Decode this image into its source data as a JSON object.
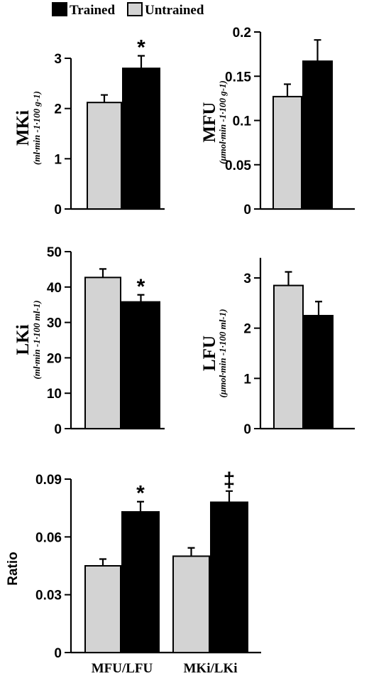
{
  "colors": {
    "trained": "#000000",
    "untrained": "#d3d3d3"
  },
  "legend": [
    {
      "name": "Trained",
      "color": "#000000"
    },
    {
      "name": "Untrained",
      "color": "#d3d3d3"
    }
  ],
  "chart_data": [
    {
      "id": "mki",
      "type": "bar",
      "title": "",
      "ylabel": "MKi",
      "yunit": "(ml·min -1·100 g-1)",
      "ylim": [
        0,
        3
      ],
      "yticks": [
        "0",
        "1",
        "2",
        "3"
      ],
      "categories": [
        ""
      ],
      "series": [
        {
          "name": "Untrained",
          "values": [
            2.12
          ],
          "errors": [
            0.15
          ]
        },
        {
          "name": "Trained",
          "values": [
            2.8
          ],
          "errors": [
            0.25
          ]
        }
      ],
      "annotations": [
        {
          "text": "*",
          "series": "Trained",
          "category": 0
        }
      ]
    },
    {
      "id": "mfu",
      "type": "bar",
      "title": "",
      "ylabel": "MFU",
      "yunit": "(μmol·min -1·100 g-1)",
      "ylim": [
        0,
        0.2
      ],
      "yticks": [
        "0",
        "0.05",
        "0.1",
        "0.15",
        "0.2"
      ],
      "categories": [
        ""
      ],
      "series": [
        {
          "name": "Untrained",
          "values": [
            0.127
          ],
          "errors": [
            0.014
          ]
        },
        {
          "name": "Trained",
          "values": [
            0.167
          ],
          "errors": [
            0.024
          ]
        }
      ],
      "annotations": []
    },
    {
      "id": "lki",
      "type": "bar",
      "title": "",
      "ylabel": "LKi",
      "yunit": "(ml·min -1·100 ml-1)",
      "ylim": [
        0,
        50
      ],
      "yticks": [
        "0",
        "10",
        "20",
        "30",
        "40",
        "50"
      ],
      "categories": [
        ""
      ],
      "series": [
        {
          "name": "Untrained",
          "values": [
            42.7
          ],
          "errors": [
            2.4
          ]
        },
        {
          "name": "Trained",
          "values": [
            35.8
          ],
          "errors": [
            2.0
          ]
        }
      ],
      "annotations": [
        {
          "text": "*",
          "series": "Trained",
          "category": 0
        }
      ]
    },
    {
      "id": "lfu",
      "type": "bar",
      "title": "",
      "ylabel": "LFU",
      "yunit": "(μmol·min -1·100 ml-1)",
      "ylim": [
        0,
        3.4
      ],
      "yticks": [
        "0",
        "1",
        "2",
        "3"
      ],
      "categories": [
        ""
      ],
      "series": [
        {
          "name": "Untrained",
          "values": [
            2.85
          ],
          "errors": [
            0.27
          ]
        },
        {
          "name": "Trained",
          "values": [
            2.25
          ],
          "errors": [
            0.28
          ]
        }
      ],
      "annotations": []
    },
    {
      "id": "ratio",
      "type": "bar",
      "title": "",
      "ylabel": "Ratio",
      "yunit": "",
      "ylim": [
        0,
        0.09
      ],
      "yticks": [
        "0",
        "0.03",
        "0.06",
        "0.09"
      ],
      "categories": [
        "MFU/LFU",
        "MKi/LKi"
      ],
      "series": [
        {
          "name": "Untrained",
          "values": [
            0.045,
            0.05
          ],
          "errors": [
            0.0035,
            0.0043
          ]
        },
        {
          "name": "Trained",
          "values": [
            0.073,
            0.078
          ],
          "errors": [
            0.0053,
            0.0058
          ]
        }
      ],
      "annotations": [
        {
          "text": "*",
          "series": "Trained",
          "category": 0
        },
        {
          "text": "‡",
          "series": "Trained",
          "category": 1
        }
      ]
    }
  ]
}
